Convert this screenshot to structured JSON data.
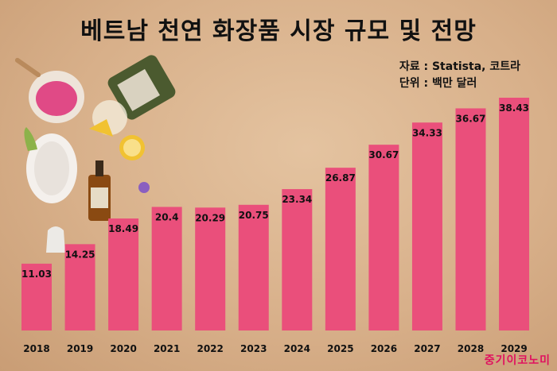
{
  "title": "베트남 천연 화장품 시장 규모 및 전망",
  "source": "자료 : Statista, 코트라",
  "unit": "단위 : 백만 달러",
  "watermark": "중기이코노미",
  "colors": {
    "bar": "#ea4f7b",
    "label": "#111111"
  },
  "chart_data": {
    "type": "bar",
    "title": "베트남 천연 화장품 시장 규모 및 전망",
    "categories": [
      "2018",
      "2019",
      "2020",
      "2021",
      "2022",
      "2023",
      "2024",
      "2025",
      "2026",
      "2027",
      "2028",
      "2029"
    ],
    "values": [
      11.03,
      14.25,
      18.49,
      20.4,
      20.29,
      20.75,
      23.34,
      26.87,
      30.67,
      34.33,
      36.67,
      38.43
    ],
    "value_labels": [
      "11.03",
      "14.25",
      "18.49",
      "20.4",
      "20.29",
      "20.75",
      "23.34",
      "26.87",
      "30.67",
      "34.33",
      "36.67",
      "38.43"
    ],
    "ylim": [
      0,
      40
    ],
    "grid": false,
    "data_labels": true,
    "legend": "none"
  }
}
